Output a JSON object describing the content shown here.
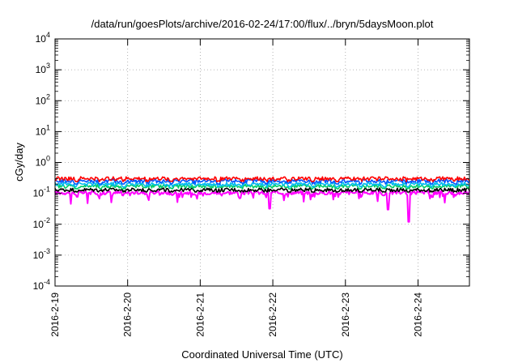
{
  "chart_data": {
    "type": "line",
    "title": "/data/run/goesPlots/archive/2016-02-24/17:00/flux/../bryn/5daysMoon.plot",
    "xlabel": "Coordinated Universal Time (UTC)",
    "ylabel": "cGy/day",
    "yscale": "log",
    "ylim": [
      0.0001,
      10000
    ],
    "xlim": [
      "2016-02-19",
      "2016-02-24T17:00"
    ],
    "grid": true,
    "legend": "none",
    "x_ticks": [
      "2016-2-19",
      "2016-2-20",
      "2016-2-21",
      "2016-2-22",
      "2016-2-23",
      "2016-2-24"
    ],
    "y_ticks": [
      {
        "base": "10",
        "exp": "-4"
      },
      {
        "base": "10",
        "exp": "-3"
      },
      {
        "base": "10",
        "exp": "-2"
      },
      {
        "base": "10",
        "exp": "-1"
      },
      {
        "base": "10",
        "exp": "0"
      },
      {
        "base": "10",
        "exp": "1"
      },
      {
        "base": "10",
        "exp": "2"
      },
      {
        "base": "10",
        "exp": "3"
      },
      {
        "base": "10",
        "exp": "4"
      }
    ],
    "series": [
      {
        "color": "#ff00ff",
        "values": {
          "baseline": 0.105,
          "range": [
            0.012,
            0.15
          ],
          "dips": [
            {
              "date": "2016-02-21T23:00",
              "value": 0.032
            },
            {
              "date": "2016-02-23T14:00",
              "value": 0.03
            },
            {
              "date": "2016-02-23T21:00",
              "value": 0.012
            }
          ]
        }
      },
      {
        "color": "#000000",
        "values": {
          "baseline": 0.13,
          "range": [
            0.11,
            0.15
          ]
        }
      },
      {
        "color": "#00cc66",
        "values": {
          "baseline": 0.17,
          "range": [
            0.14,
            0.2
          ]
        }
      },
      {
        "color": "#00bbee",
        "values": {
          "baseline": 0.2,
          "range": [
            0.16,
            0.26
          ]
        }
      },
      {
        "color": "#0055ff",
        "values": {
          "baseline": 0.25,
          "range": [
            0.2,
            0.32
          ]
        }
      },
      {
        "color": "#ff0000",
        "values": {
          "baseline": 0.3,
          "range": [
            0.24,
            0.38
          ]
        }
      }
    ]
  }
}
